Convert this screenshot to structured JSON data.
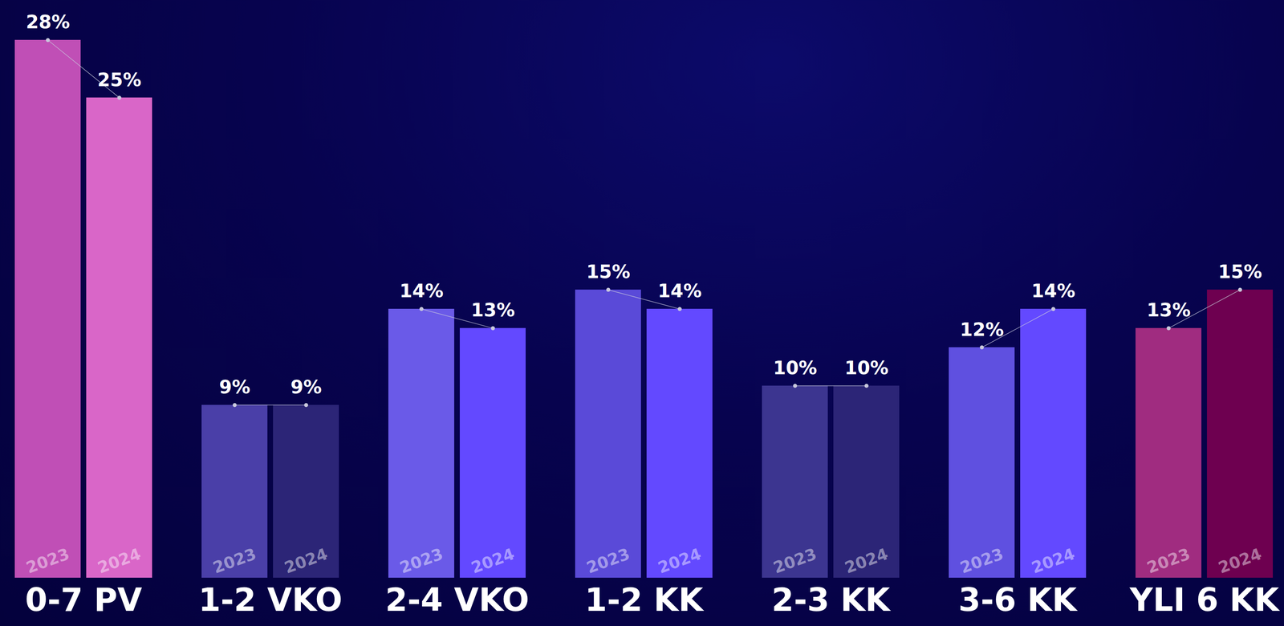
{
  "chart_data": {
    "type": "bar",
    "categories": [
      "0-7 PV",
      "1-2 VKO",
      "2-4 VKO",
      "1-2 KK",
      "2-3 KK",
      "3-6 KK",
      "YLI 6 KK"
    ],
    "series": [
      {
        "name": "2023",
        "values": [
          28,
          9,
          14,
          15,
          10,
          12,
          13
        ],
        "value_labels": [
          "28%",
          "9%",
          "14%",
          "15%",
          "10%",
          "12%",
          "13%"
        ],
        "colors": [
          "#c04fb6",
          "#4a3fa8",
          "#6a5ae8",
          "#5a4ad8",
          "#3c3590",
          "#5f50e0",
          "#a02c80"
        ]
      },
      {
        "name": "2024",
        "values": [
          25,
          9,
          13,
          14,
          10,
          14,
          15
        ],
        "value_labels": [
          "25%",
          "9%",
          "13%",
          "14%",
          "10%",
          "14%",
          "15%"
        ],
        "colors": [
          "#d966c8",
          "#2c2577",
          "#6349ff",
          "#6349ff",
          "#2c2577",
          "#6349ff",
          "#6e0050"
        ]
      }
    ],
    "ylim": [
      0,
      28
    ],
    "yticks": [],
    "data_labels": true,
    "tick_labels": "x"
  }
}
